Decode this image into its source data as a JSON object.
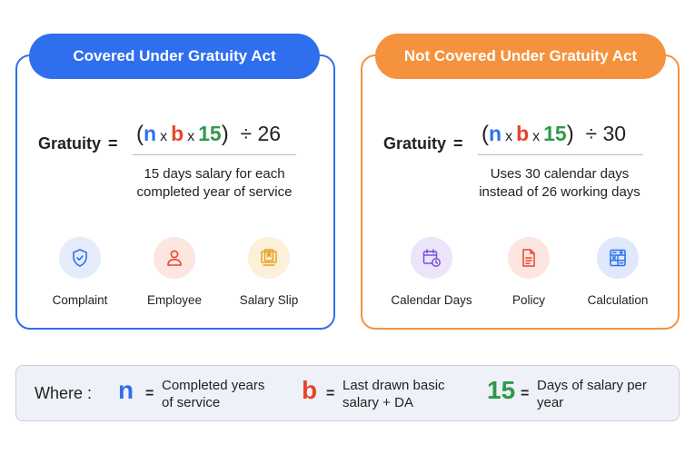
{
  "colors": {
    "blue": "#2f6fed",
    "orange": "#f5923e",
    "red": "#e8452c",
    "green": "#2e9a4b"
  },
  "left": {
    "title": "Covered Under Gratuity Act",
    "lhs": "Gratuity",
    "eq": "=",
    "num": {
      "open": "(",
      "n": "n",
      "x1": "x",
      "b": "b",
      "x2": "x",
      "f": "15",
      "close": ")",
      "div": "÷ 26"
    },
    "desc1": "15 days salary for each",
    "desc2": "completed  year of service",
    "icons": [
      {
        "name": "shield-check-icon",
        "label": "Complaint"
      },
      {
        "name": "person-icon",
        "label": "Employee"
      },
      {
        "name": "salary-slip-icon",
        "label": "Salary Slip"
      }
    ]
  },
  "right": {
    "title": "Not Covered Under Gratuity Act",
    "lhs": "Gratuity",
    "eq": "=",
    "num": {
      "open": "(",
      "n": "n",
      "x1": "x",
      "b": "b",
      "x2": "x",
      "f": "15",
      "close": ")",
      "div": "÷ 30"
    },
    "desc1": "Uses 30 calendar days",
    "desc2": "instead of 26 working days",
    "icons": [
      {
        "name": "calendar-clock-icon",
        "label": "Calendar Days"
      },
      {
        "name": "document-icon",
        "label": "Policy"
      },
      {
        "name": "calculator-icon",
        "label": "Calculation"
      }
    ]
  },
  "where": {
    "title": "Where :",
    "n_sym": "n",
    "n_eq": "=",
    "n_desc1": "Completed years",
    "n_desc2": "of service",
    "b_sym": "b",
    "b_eq": "=",
    "b_desc1": "Last drawn basic",
    "b_desc2": "salary + DA",
    "f_sym": "15",
    "f_eq": "=",
    "f_desc1": "Days of salary per",
    "f_desc2": "year"
  }
}
